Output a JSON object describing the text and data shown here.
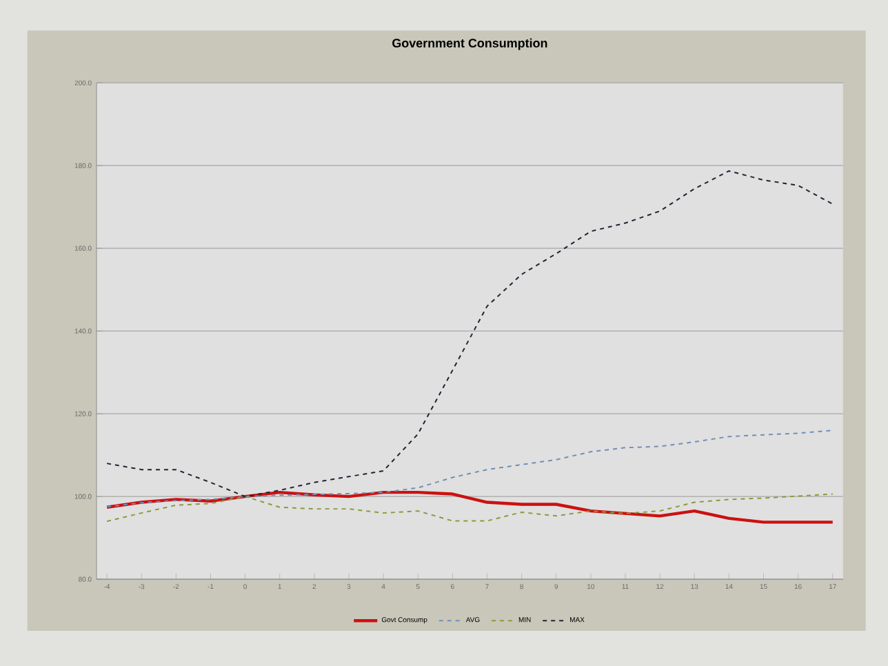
{
  "chart_data": {
    "type": "line",
    "title": "Government Consumption",
    "categories": [
      "-4",
      "-3",
      "-2",
      "-1",
      "0",
      "1",
      "2",
      "3",
      "4",
      "5",
      "6",
      "7",
      "8",
      "9",
      "10",
      "11",
      "12",
      "13",
      "14",
      "15",
      "16",
      "17"
    ],
    "series": [
      {
        "name": "Govt Consump",
        "color": "#cc1111",
        "line_style": "solid",
        "values": [
          97.4,
          98.6,
          99.3,
          98.9,
          100,
          101,
          100.4,
          100,
          101,
          101,
          100.6,
          98.6,
          98.1,
          98.1,
          96.5,
          95.9,
          95.3,
          96.5,
          94.7,
          93.8,
          93.8,
          93.8
        ]
      },
      {
        "name": "AVG",
        "color": "#6f8fb8",
        "line_style": "dashed",
        "values": [
          97.5,
          98.5,
          99,
          99.3,
          100,
          100.3,
          100.5,
          100.7,
          101,
          102.1,
          104.6,
          106.5,
          107.7,
          108.9,
          110.8,
          111.8,
          112.1,
          113.2,
          114.5,
          114.9,
          115.3,
          116
        ]
      },
      {
        "name": "MIN",
        "color": "#8a9a3a",
        "line_style": "dashed",
        "values": [
          94,
          96,
          97.9,
          98.3,
          100,
          97.4,
          97,
          97,
          96,
          96.5,
          94.1,
          94.1,
          96.2,
          95.3,
          96.5,
          95.9,
          96.5,
          98.6,
          99.3,
          99.6,
          100.1,
          100.6
        ]
      },
      {
        "name": "MAX",
        "color": "#222233",
        "line_style": "dashed",
        "values": [
          108,
          106.5,
          106.5,
          103.4,
          100,
          101.5,
          103.4,
          104.8,
          106.2,
          115.1,
          130.5,
          146,
          153.7,
          158.7,
          164.1,
          166.1,
          169,
          174.4,
          178.7,
          176.5,
          175.2,
          170.7
        ]
      }
    ],
    "ylim": [
      80,
      200
    ],
    "yticks": [
      {
        "value": 80,
        "label": "80.0"
      },
      {
        "value": 100,
        "label": "100.0"
      },
      {
        "value": 120,
        "label": "120.0"
      },
      {
        "value": 140,
        "label": "140.0"
      },
      {
        "value": 160,
        "label": "160.0"
      },
      {
        "value": 180,
        "label": "180.0"
      },
      {
        "value": 200,
        "label": "200.0"
      }
    ],
    "grid": "y",
    "legend": "bottom"
  }
}
